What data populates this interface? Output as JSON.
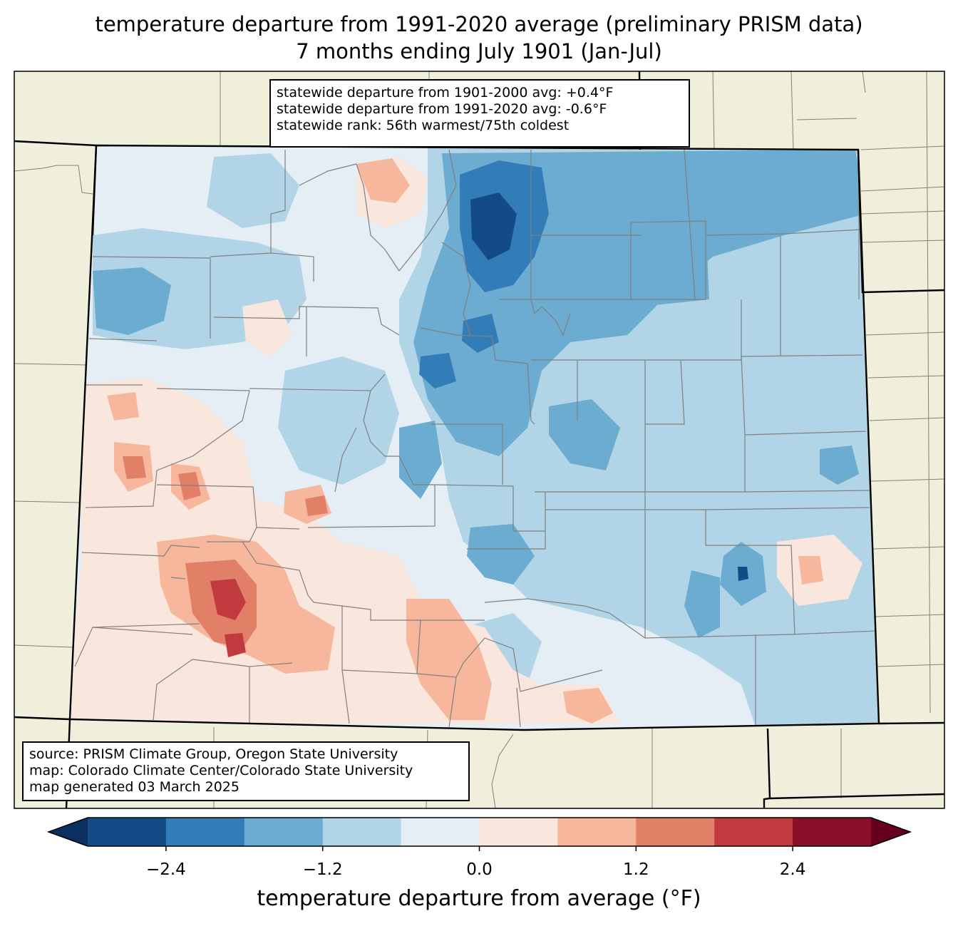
{
  "title": {
    "line1": "temperature departure from 1991-2020 average (preliminary PRISM data)",
    "line2": "7 months ending July 1901 (Jan-Jul)"
  },
  "stats": {
    "line1": "statewide departure from 1901-2000 avg: +0.4°F",
    "line2": "statewide departure from 1991-2020 avg: -0.6°F",
    "line3": "statewide rank: 56th warmest/75th coldest"
  },
  "source": {
    "line1": "source: PRISM Climate Group, Oregon State University",
    "line2": "map: Colorado Climate Center/Colorado State University",
    "line3": "map generated 03 March 2025"
  },
  "colorbar": {
    "label": "temperature departure from average (°F)",
    "ticks": [
      "−2.4",
      "−1.2",
      "0.0",
      "1.2",
      "2.4"
    ],
    "tick_values": [
      -2.4,
      -1.2,
      0.0,
      1.2,
      2.4
    ],
    "min": -3.0,
    "max": 3.0,
    "bins": [
      {
        "from": -3.0,
        "to": -2.4,
        "color": "#134b87"
      },
      {
        "from": -2.4,
        "to": -1.8,
        "color": "#327db7"
      },
      {
        "from": -1.8,
        "to": -1.2,
        "color": "#6bacd0"
      },
      {
        "from": -1.2,
        "to": -0.6,
        "color": "#b1d5e7"
      },
      {
        "from": -0.6,
        "to": 0.0,
        "color": "#e4eef4"
      },
      {
        "from": 0.0,
        "to": 0.6,
        "color": "#f9e6dc"
      },
      {
        "from": 0.6,
        "to": 1.2,
        "color": "#f6b79c"
      },
      {
        "from": 1.2,
        "to": 1.8,
        "color": "#e17f67"
      },
      {
        "from": 1.8,
        "to": 2.4,
        "color": "#c13a3e"
      },
      {
        "from": 2.4,
        "to": 3.0,
        "color": "#890e27"
      }
    ],
    "under_color": "#093061",
    "over_color": "#67001f"
  },
  "colors": {
    "background_land": "#efefdc",
    "county_lines": "#808080",
    "state_lines": "#000000"
  }
}
